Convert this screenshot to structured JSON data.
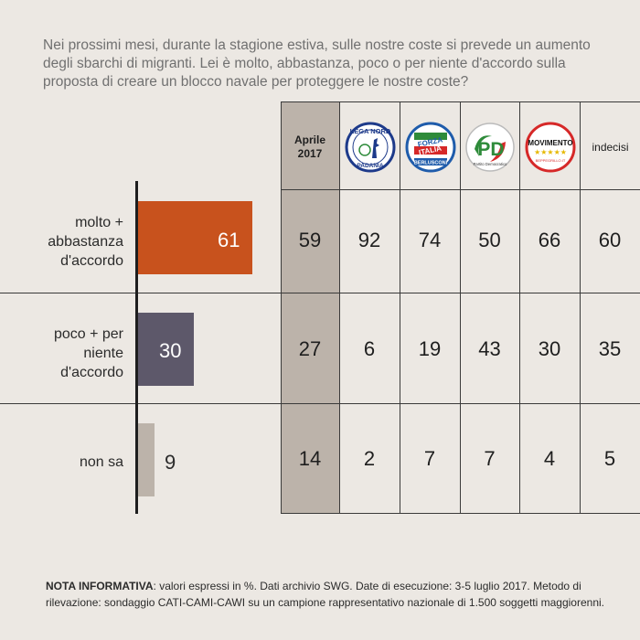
{
  "question": "Nei prossimi mesi, durante la stagione estiva, sulle nostre coste si prevede un aumento degli sbarchi di migranti. Lei è molto, abbastanza, poco o per niente d'accordo sulla proposta di creare un blocco navale per proteggere le nostre coste?",
  "colors": {
    "background": "#ece8e3",
    "shaded_column": "#bcb3aa",
    "bar_agree": "#c8521d",
    "bar_disagree": "#5d586a",
    "bar_unsure": "#bcb3aa"
  },
  "columns": {
    "aprile": "Aprile 2017",
    "lega": "Lega Nord",
    "forza": "Forza Italia",
    "pd": "Partito Democratico",
    "m5s": "Movimento 5 Stelle",
    "indecisi": "indecisi"
  },
  "logo_text": {
    "lega_top": "LEGA NORD",
    "lega_bottom": "PADANIA",
    "forza_1": "FORZA",
    "forza_2": "ITALIA",
    "forza_3": "BERLUSCONI",
    "pd_main": "PD",
    "pd_sub": "Partito Democratico",
    "m5s_main": "MOVIMENTO",
    "m5s_stars": "★★★★★",
    "m5s_sub": "BEPPEGRILLO.IT"
  },
  "rows": [
    {
      "label": "molto + abbastanza d'accordo",
      "total": "61",
      "values": [
        "59",
        "92",
        "74",
        "50",
        "66",
        "60"
      ]
    },
    {
      "label": "poco + per niente d'accordo",
      "total": "30",
      "values": [
        "27",
        "6",
        "19",
        "43",
        "30",
        "35"
      ]
    },
    {
      "label": "non sa",
      "total": "9",
      "values": [
        "14",
        "2",
        "7",
        "7",
        "4",
        "5"
      ]
    }
  ],
  "chart_data": {
    "type": "bar",
    "orientation": "horizontal",
    "categories": [
      "molto + abbastanza d'accordo",
      "poco + per niente d'accordo",
      "non sa"
    ],
    "values": [
      61,
      30,
      9
    ],
    "xlim": [
      0,
      100
    ]
  },
  "note": {
    "label": "NOTA INFORMATIVA",
    "text": ": valori espressi in %. Dati archivio SWG. Date di esecuzione: 3-5 luglio 2017. Metodo di rilevazione: sondaggio CATI-CAMI-CAWI su un campione rappresentativo nazionale di 1.500 soggetti maggiorenni."
  }
}
